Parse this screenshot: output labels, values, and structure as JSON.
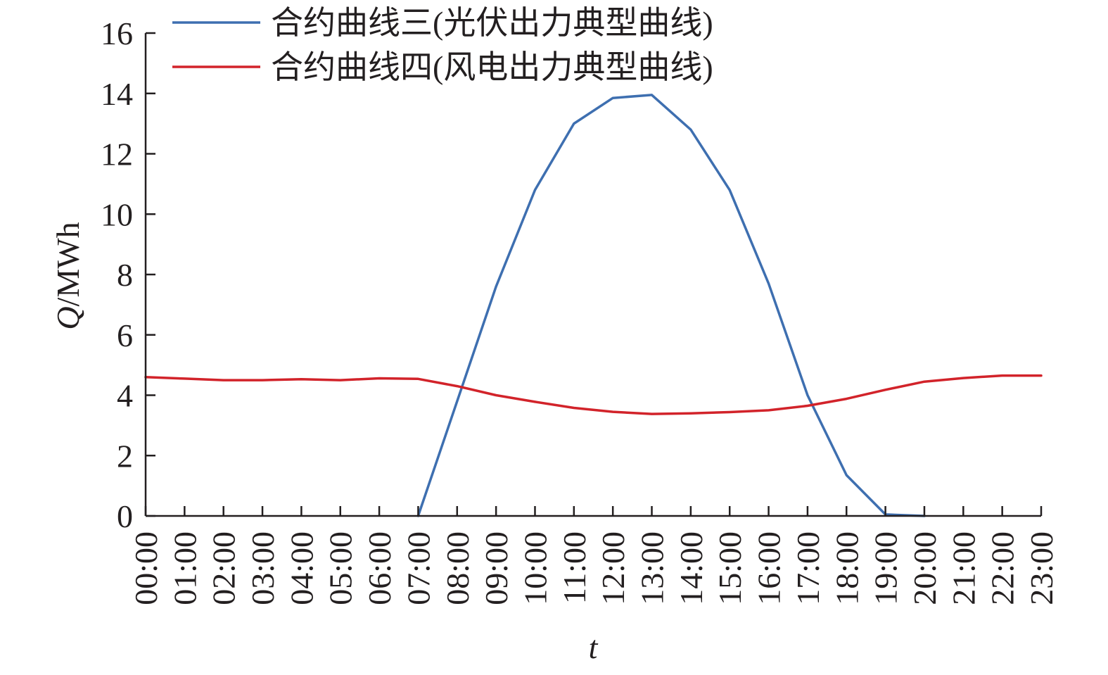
{
  "chart_data": {
    "type": "line",
    "categories": [
      "00:00",
      "01:00",
      "02:00",
      "03:00",
      "04:00",
      "05:00",
      "06:00",
      "07:00",
      "08:00",
      "09:00",
      "10:00",
      "11:00",
      "12:00",
      "13:00",
      "14:00",
      "15:00",
      "16:00",
      "17:00",
      "18:00",
      "19:00",
      "20:00",
      "21:00",
      "22:00",
      "23:00"
    ],
    "series": [
      {
        "name": "合约曲线三(光伏出力典型曲线)",
        "color": "#3e6fb0",
        "values": [
          null,
          null,
          null,
          null,
          null,
          null,
          null,
          0,
          3.8,
          7.6,
          10.8,
          13.0,
          13.85,
          13.95,
          12.8,
          10.8,
          7.7,
          4.0,
          1.35,
          0.05,
          0,
          null,
          null,
          null
        ]
      },
      {
        "name": "合约曲线四(风电出力典型曲线)",
        "color": "#d2232a",
        "values": [
          4.6,
          4.55,
          4.5,
          4.5,
          4.53,
          4.5,
          4.56,
          4.54,
          4.3,
          4.0,
          3.78,
          3.58,
          3.45,
          3.38,
          3.4,
          3.44,
          3.5,
          3.65,
          3.88,
          4.18,
          4.45,
          4.57,
          4.65,
          4.65
        ]
      }
    ],
    "xlabel": "t",
    "ylabel_italic": "Q",
    "ylabel_unit": "/MWh",
    "ylim": [
      0,
      16
    ],
    "yticks": [
      0,
      2,
      4,
      6,
      8,
      10,
      12,
      14,
      16
    ],
    "grid": false,
    "legend_position": "top"
  }
}
